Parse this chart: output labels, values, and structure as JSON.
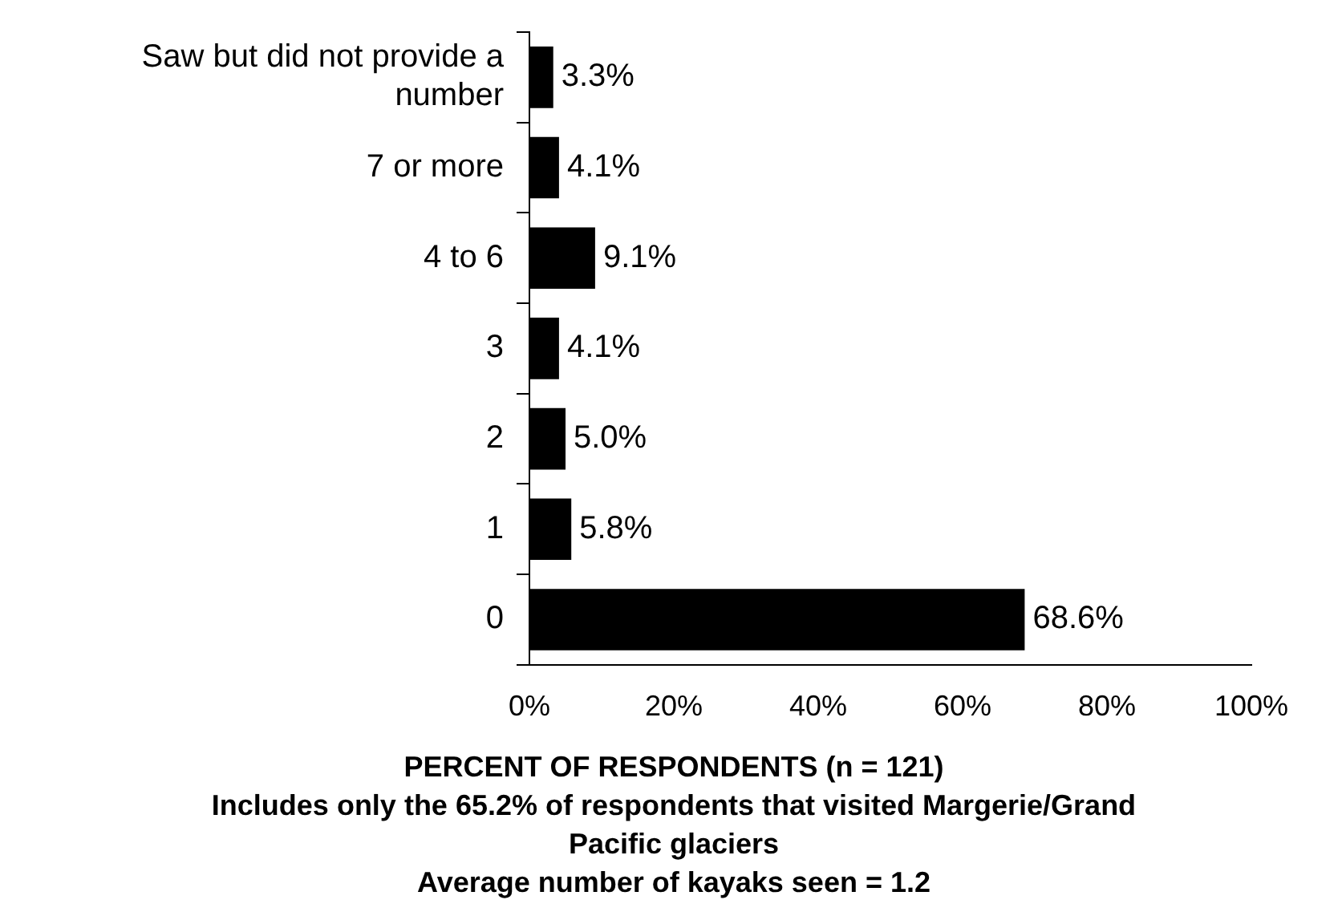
{
  "chart_data": {
    "type": "bar",
    "orientation": "horizontal",
    "categories": [
      "Saw but did not provide a number",
      "7 or more",
      "4 to 6",
      "3",
      "2",
      "1",
      "0"
    ],
    "values": [
      3.3,
      4.1,
      9.1,
      4.1,
      5.0,
      5.8,
      68.6
    ],
    "value_labels": [
      "3.3%",
      "4.1%",
      "9.1%",
      "4.1%",
      "5.0%",
      "5.8%",
      "68.6%"
    ],
    "color": "#000000",
    "xlim": [
      0,
      100
    ],
    "xticks": [
      {
        "value": 0,
        "label": "0%"
      },
      {
        "value": 20,
        "label": "20%"
      },
      {
        "value": 40,
        "label": "40%"
      },
      {
        "value": 60,
        "label": "60%"
      },
      {
        "value": 80,
        "label": "80%"
      },
      {
        "value": 100,
        "label": "100%"
      }
    ],
    "xlabel": "PERCENT OF RESPONDENTS (n = 121)",
    "annotations": [
      "Includes only the 65.2% of respondents that visited Margerie/Grand Pacific glaciers",
      "Average number of kayaks seen = 1.2"
    ],
    "grid": false,
    "legend": false
  }
}
